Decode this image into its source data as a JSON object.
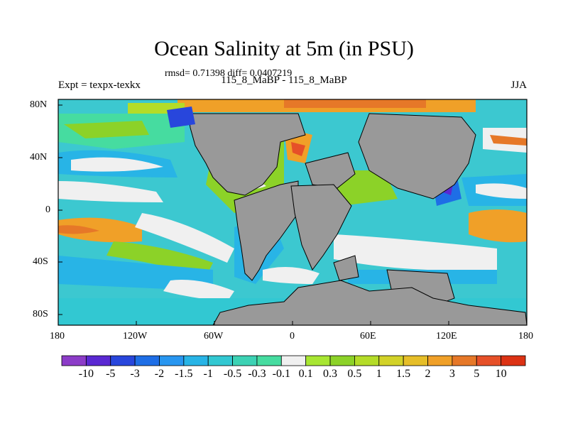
{
  "title": "Ocean Salinity at 5m (in PSU)",
  "stats": "rmsd= 0.71398 diff= 0.0407219",
  "left_label": "Expt = texpx-texkx",
  "center_label": "115_8_MaBP - 115_8_MaBP",
  "right_label": "JJA",
  "lat_ticks": [
    "80N",
    "40N",
    "0",
    "40S",
    "80S"
  ],
  "lon_ticks": [
    "180",
    "120W",
    "60W",
    "0",
    "60E",
    "120E",
    "180"
  ],
  "colorbar": {
    "labels": [
      "-10",
      "-5",
      "-3",
      "-2",
      "-1.5",
      "-1",
      "-0.5",
      "-0.3",
      "-0.1",
      "0.1",
      "0.3",
      "0.5",
      "1",
      "1.5",
      "2",
      "3",
      "5",
      "10"
    ],
    "colors": [
      "#8c3cc8",
      "#5a28d2",
      "#2846dc",
      "#1e6ee6",
      "#2896f0",
      "#28b4e6",
      "#32c8d2",
      "#3cd2b4",
      "#46dca0",
      "#f0f0f0",
      "#a8e632",
      "#8cd228",
      "#b4dc28",
      "#d2d228",
      "#e6be28",
      "#f0a028",
      "#e67828",
      "#e65028",
      "#dc3214"
    ]
  },
  "land_color": "#999999"
}
